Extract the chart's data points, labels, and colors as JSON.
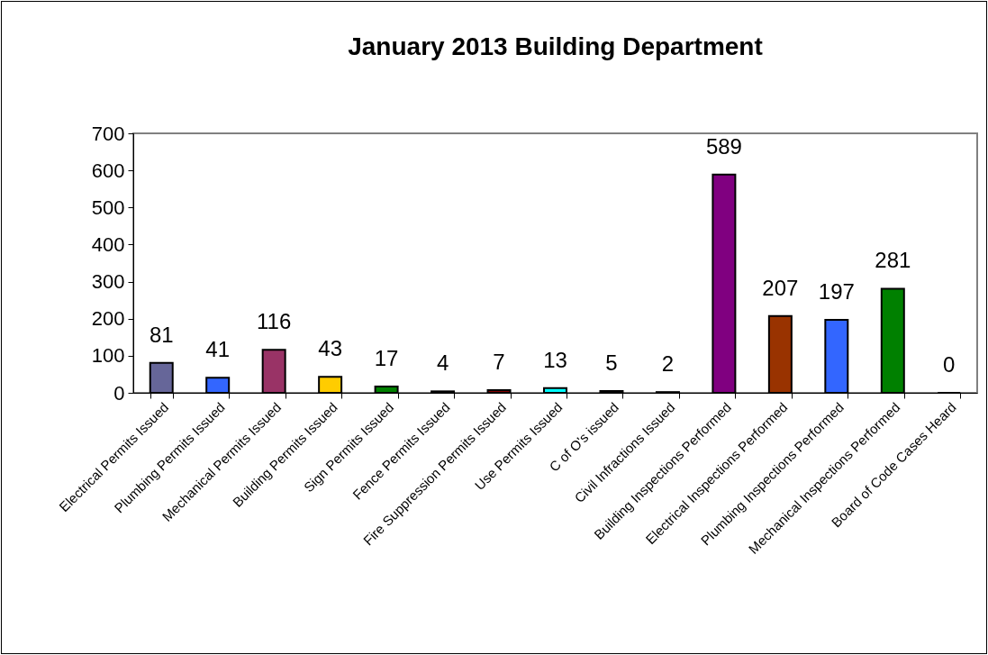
{
  "chart_data": {
    "type": "bar",
    "title": "January 2013 Building Department",
    "categories": [
      "Electrical Permits Issued",
      "Plumbing Permits Issued",
      "Mechanical Permits Issued",
      "Building Permits Issued",
      "Sign Permits Issued",
      "Fence Permits Issued",
      "Fire Suppression Permits Issued",
      "Use Permits Issued",
      "C of O's issued",
      "Civil Infractions Issued",
      "Building Inspections Performed",
      "Electrical Inspections Performed",
      "Plumbing Inspections Performed",
      "Mechanical Inspections Performed",
      "Board of Code Cases Heard"
    ],
    "values": [
      81,
      41,
      116,
      43,
      17,
      4,
      7,
      13,
      5,
      2,
      589,
      207,
      197,
      281,
      0
    ],
    "colors": [
      "#666699",
      "#3366ff",
      "#993366",
      "#ffcc00",
      "#008000",
      "#000080",
      "#800000",
      "#00ffff",
      "#339966",
      "#ff6600",
      "#800080",
      "#993300",
      "#3366ff",
      "#008000",
      "#000000"
    ],
    "ylim": [
      0,
      700
    ],
    "yticks": [
      0,
      100,
      200,
      300,
      400,
      500,
      600,
      700
    ],
    "grid": false,
    "data_labels": true
  }
}
